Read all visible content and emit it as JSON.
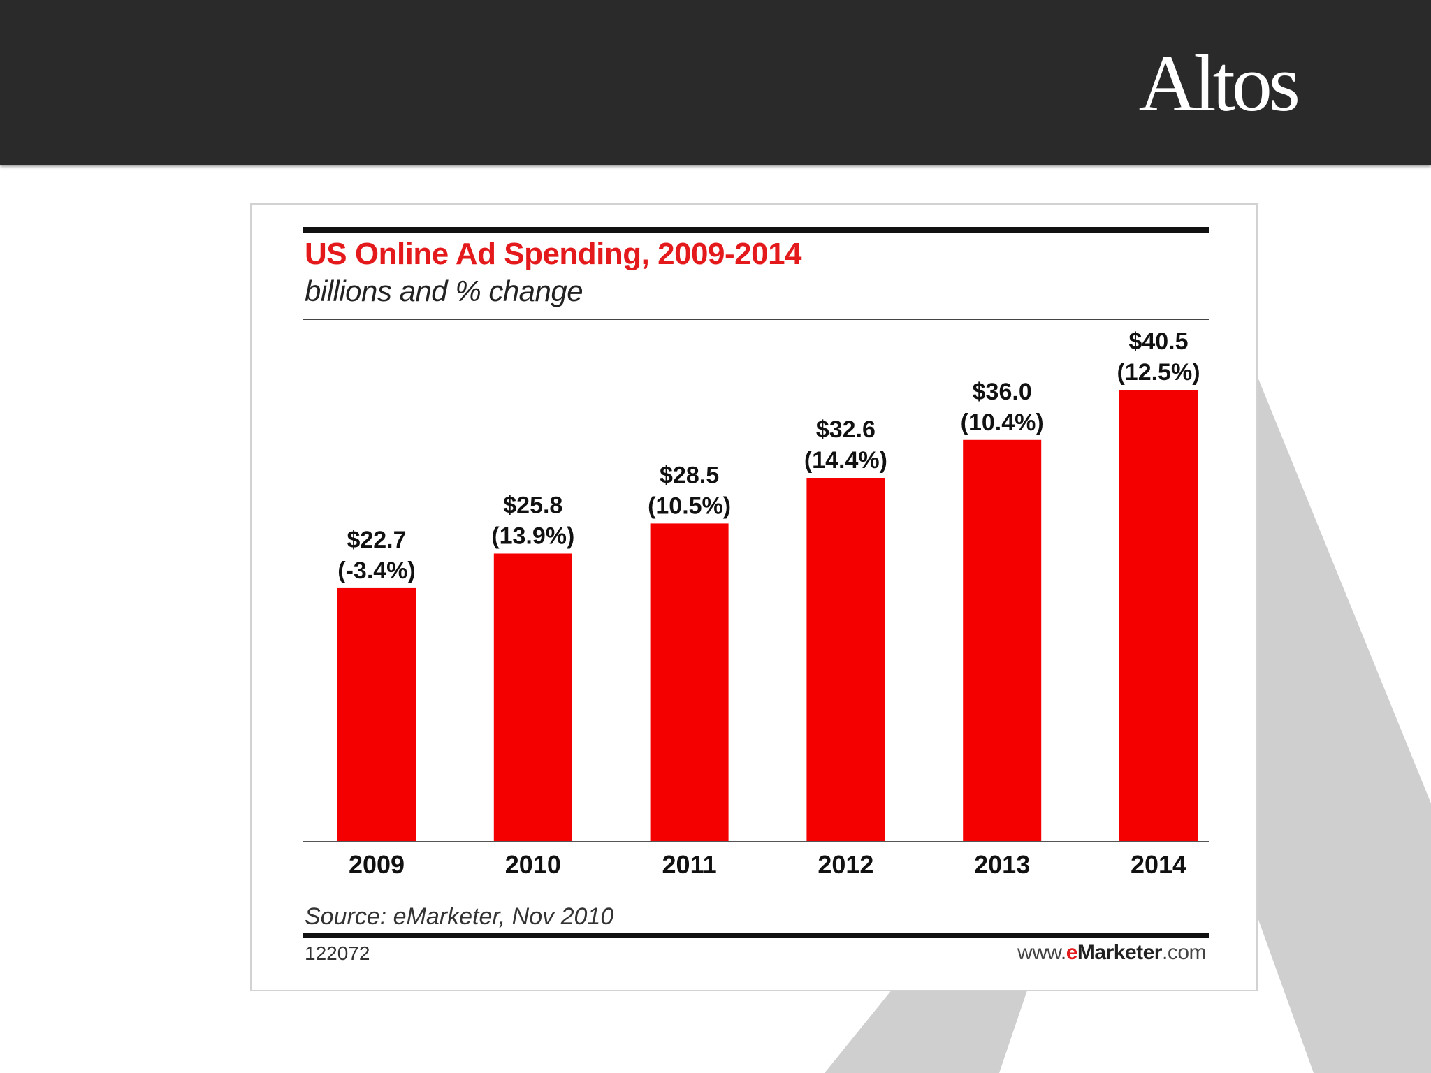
{
  "header": {
    "brand": "Altos"
  },
  "chart_card": {
    "title": "US Online Ad Spending, 2009-2014",
    "subtitle": "billions and % change",
    "source": "Source: eMarketer, Nov 2010",
    "chart_id": "122072",
    "site": {
      "prefix": "www.",
      "accent": "e",
      "name": "Marketer",
      "suffix": ".com"
    }
  },
  "colors": {
    "bar": "#f40000",
    "title": "#e3191c",
    "header_bg": "#2b2a2a",
    "watermark": "#cfcfcf"
  },
  "chart_data": {
    "type": "bar",
    "title": "US Online Ad Spending, 2009-2014",
    "subtitle": "billions and % change",
    "categories": [
      "2009",
      "2010",
      "2011",
      "2012",
      "2013",
      "2014"
    ],
    "values": [
      22.7,
      25.8,
      28.5,
      32.6,
      36.0,
      40.5
    ],
    "value_labels": [
      "$22.7",
      "$25.8",
      "$28.5",
      "$32.6",
      "$36.0",
      "$40.5"
    ],
    "change_labels": [
      "(-3.4%)",
      "(13.9%)",
      "(10.5%)",
      "(14.4%)",
      "(10.4%)",
      "(12.5%)"
    ],
    "ylim": [
      0,
      40.5
    ],
    "grid": false,
    "legend": "none"
  }
}
